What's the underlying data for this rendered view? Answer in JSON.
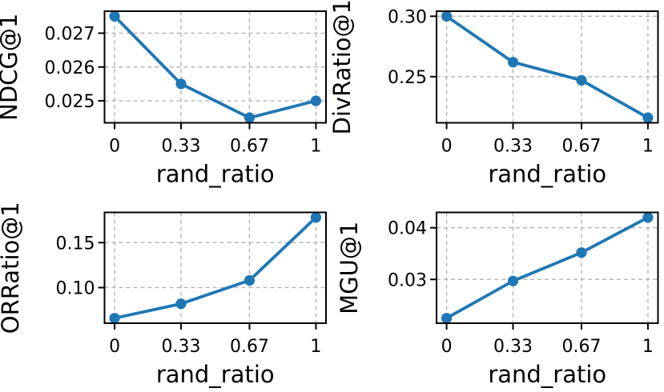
{
  "figure": {
    "background": "#ffffff",
    "line_color": "#1f77b4",
    "marker_color": "#1f77b4",
    "grid_color": "#b4b4b4",
    "axes_color": "#000000",
    "xlabel": "rand_ratio",
    "xtick_labels": [
      "0",
      "0.33",
      "0.67",
      "1"
    ]
  },
  "chart_data": [
    {
      "id": "ndcg",
      "type": "line",
      "title": "",
      "xlabel": "rand_ratio",
      "ylabel": "NDCG@1",
      "x": [
        0,
        0.33,
        0.67,
        1
      ],
      "values": [
        0.0275,
        0.0255,
        0.0245,
        0.025
      ],
      "xtick_labels": [
        "0",
        "0.33",
        "0.67",
        "1"
      ],
      "yticks": [
        0.025,
        0.026,
        0.027
      ],
      "ytick_labels": [
        "0.025",
        "0.026",
        "0.027"
      ],
      "grid": true,
      "legend": "none",
      "marker": "circle"
    },
    {
      "id": "divratio",
      "type": "line",
      "title": "",
      "xlabel": "rand_ratio",
      "ylabel": "DivRatio@1",
      "x": [
        0,
        0.33,
        0.67,
        1
      ],
      "values": [
        0.3,
        0.262,
        0.247,
        0.216
      ],
      "xtick_labels": [
        "0",
        "0.33",
        "0.67",
        "1"
      ],
      "yticks": [
        0.25,
        0.3
      ],
      "ytick_labels": [
        "0.25",
        "0.30"
      ],
      "grid": true,
      "legend": "none",
      "marker": "circle"
    },
    {
      "id": "orratio",
      "type": "line",
      "title": "",
      "xlabel": "rand_ratio",
      "ylabel": "ORRatio@1",
      "x": [
        0,
        0.33,
        0.67,
        1
      ],
      "values": [
        0.066,
        0.082,
        0.108,
        0.178
      ],
      "xtick_labels": [
        "0",
        "0.33",
        "0.67",
        "1"
      ],
      "yticks": [
        0.1,
        0.15
      ],
      "ytick_labels": [
        "0.10",
        "0.15"
      ],
      "grid": true,
      "legend": "none",
      "marker": "circle"
    },
    {
      "id": "mgu",
      "type": "line",
      "title": "",
      "xlabel": "rand_ratio",
      "ylabel": "MGU@1",
      "x": [
        0,
        0.33,
        0.67,
        1
      ],
      "values": [
        0.0225,
        0.0297,
        0.0352,
        0.042
      ],
      "xtick_labels": [
        "0",
        "0.33",
        "0.67",
        "1"
      ],
      "yticks": [
        0.03,
        0.04
      ],
      "ytick_labels": [
        "0.03",
        "0.04"
      ],
      "grid": true,
      "legend": "none",
      "marker": "circle"
    }
  ]
}
